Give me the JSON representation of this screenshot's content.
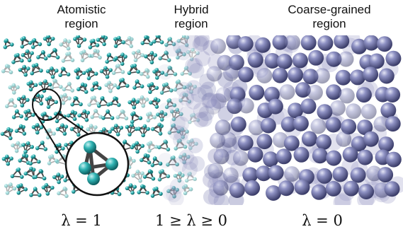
{
  "regions": {
    "atomistic": {
      "line1": "Atomistic",
      "line2": "region",
      "lambda": "λ = 1"
    },
    "hybrid": {
      "line1": "Hybrid",
      "line2": "region",
      "lambda": "1 ≥ λ ≥ 0"
    },
    "coarse": {
      "line1": "Coarse-grained",
      "line2": "region",
      "lambda": "λ = 0"
    }
  },
  "colors": {
    "atom": "#2fb3b3",
    "bond": "#555555",
    "cg_sphere": "#6f72a8",
    "cg_highlight": "#d9dbf0"
  },
  "icons": {
    "zoom_inset": "tetrahedral-molecule-icon"
  }
}
